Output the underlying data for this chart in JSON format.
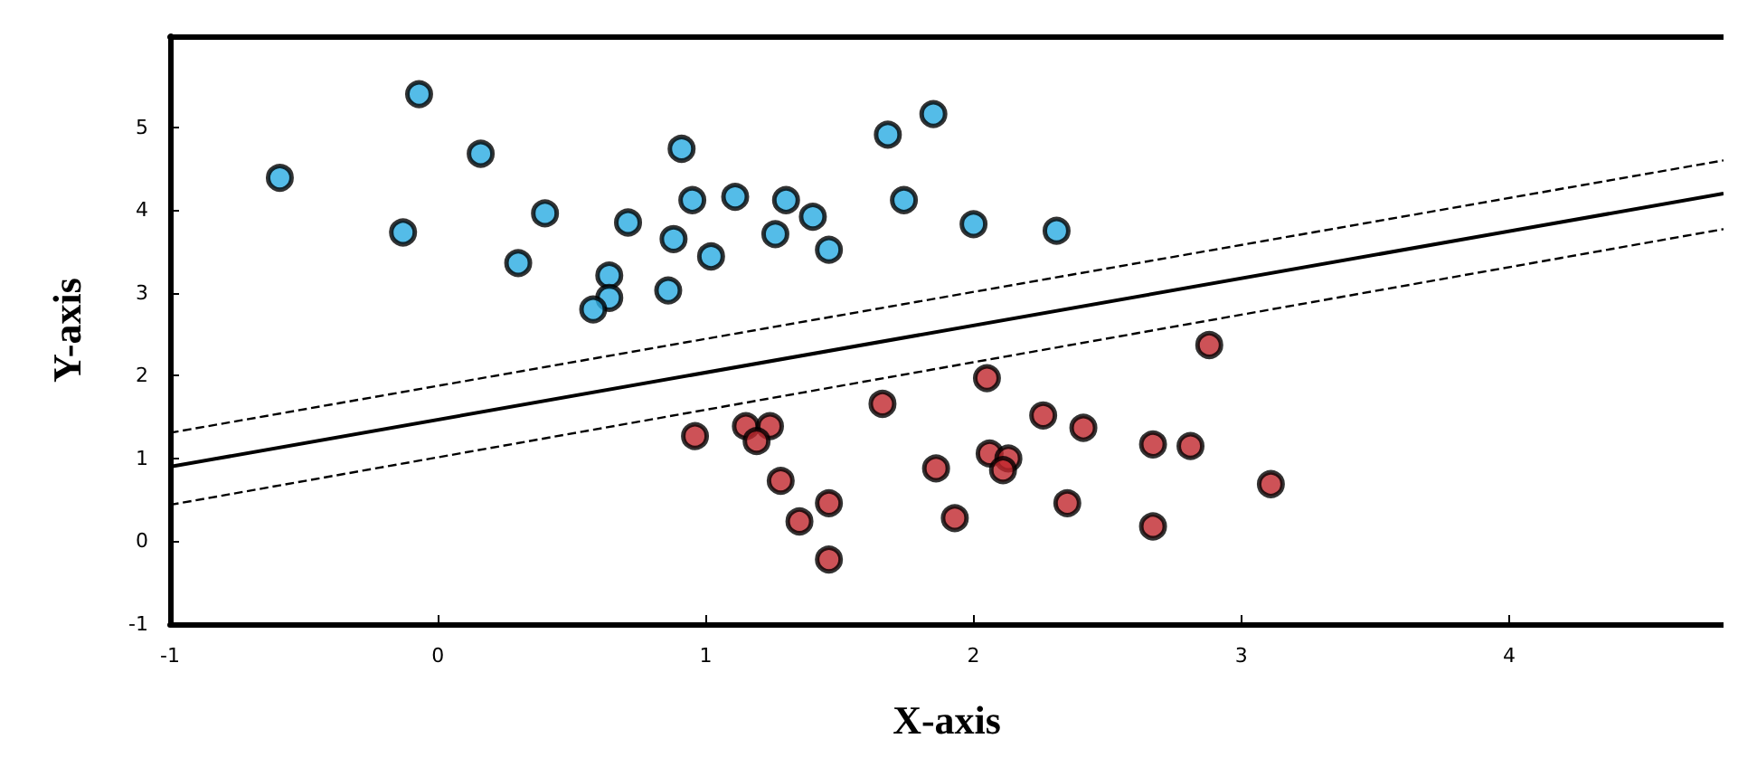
{
  "chart_data": {
    "type": "scatter",
    "xlabel": "X-axis",
    "ylabel": "Y-axis",
    "xlim": [
      -1,
      4.8
    ],
    "ylim": [
      -1,
      6.1
    ],
    "xticks": [
      -1,
      0,
      1,
      2,
      3,
      4
    ],
    "yticks": [
      -1,
      0,
      1,
      2,
      3,
      4,
      5
    ],
    "grid": false,
    "marker": "circle",
    "series": [
      {
        "color": "#29abe2",
        "x": [
          -0.59,
          -0.07,
          0.16,
          -0.13,
          0.4,
          0.3,
          0.71,
          0.64,
          0.64,
          0.58,
          0.91,
          0.95,
          0.88,
          0.86,
          1.02,
          1.11,
          1.3,
          1.26,
          1.4,
          1.46,
          1.68,
          1.74,
          1.85,
          2.0,
          2.31
        ],
        "values": [
          4.39,
          5.4,
          4.68,
          3.73,
          3.96,
          3.36,
          3.85,
          3.21,
          2.94,
          2.8,
          4.74,
          4.12,
          3.65,
          3.03,
          3.44,
          4.16,
          4.12,
          3.71,
          3.92,
          3.52,
          4.91,
          4.12,
          5.16,
          3.83,
          3.75
        ]
      },
      {
        "color": "#c1272d",
        "x": [
          0.96,
          1.15,
          1.24,
          1.19,
          1.28,
          1.35,
          1.46,
          1.46,
          1.66,
          1.86,
          1.93,
          2.05,
          2.06,
          2.13,
          2.11,
          2.26,
          2.41,
          2.35,
          2.67,
          2.67,
          2.81,
          2.88,
          3.11
        ],
        "values": [
          1.27,
          1.39,
          1.39,
          1.21,
          0.73,
          0.24,
          0.46,
          -0.22,
          1.66,
          0.88,
          0.28,
          1.97,
          1.06,
          1.0,
          0.86,
          1.52,
          1.37,
          0.46,
          1.17,
          0.18,
          1.15,
          2.37,
          0.69
        ]
      },
      {
        "type": "line",
        "color": "#000000",
        "line_style": "solid",
        "marker": "none",
        "x": [
          -1,
          4.8
        ],
        "values": [
          0.9,
          4.2
        ]
      },
      {
        "type": "line",
        "color": "#000000",
        "line_style": "dashed",
        "marker": "none",
        "x": [
          -1,
          4.8
        ],
        "values": [
          1.31,
          4.6
        ]
      },
      {
        "type": "line",
        "color": "#000000",
        "line_style": "dashed",
        "marker": "none",
        "x": [
          -1,
          4.8
        ],
        "values": [
          0.44,
          3.77
        ]
      }
    ]
  }
}
